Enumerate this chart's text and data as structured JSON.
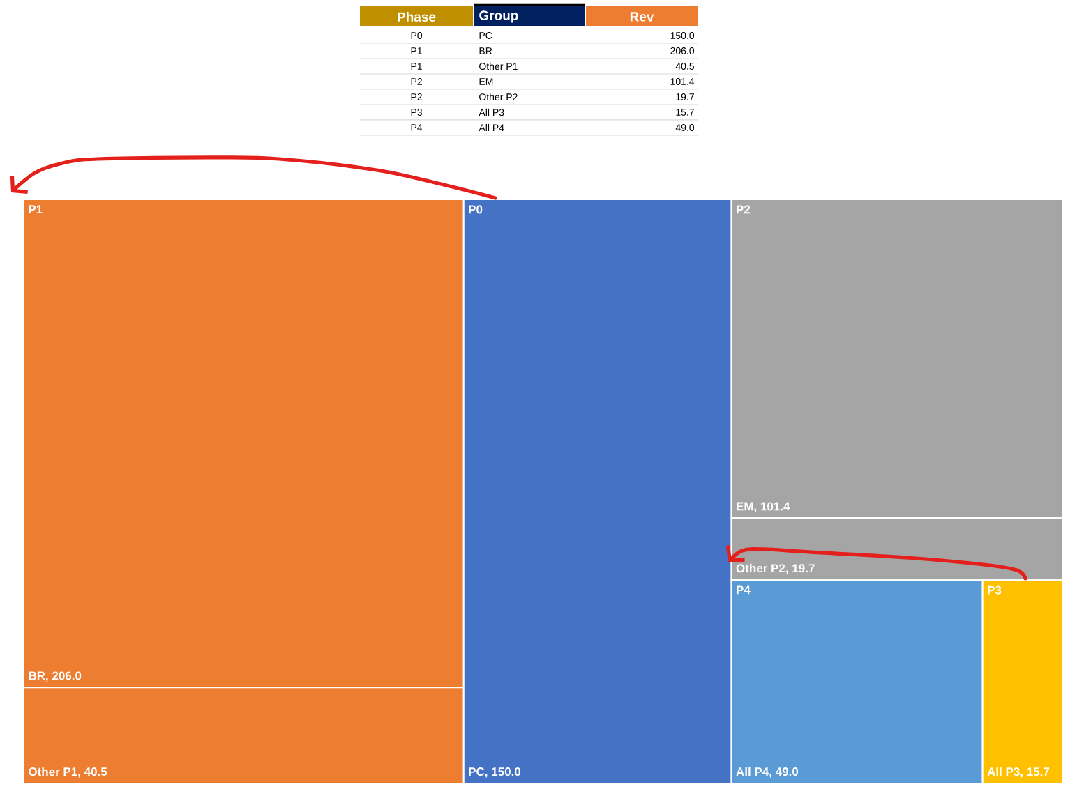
{
  "chart_data": {
    "type": "other",
    "annotations": [
      "Phase",
      "Group",
      "Rev",
      "P0",
      "PC",
      "150.0",
      "P1",
      "BR",
      "206.0",
      "P1",
      "Other P1",
      "40.5",
      "P2",
      "EM",
      "101.4",
      "P2",
      "Other P2",
      "19.7",
      "P3",
      "All P3",
      "15.7",
      "P4",
      "All P4",
      "49.0"
    ],
    "categories": [
      "PC",
      "BR",
      "Other P1",
      "EM",
      "Other P2",
      "All P3",
      "All P4"
    ],
    "series": [
      {
        "name": "P1",
        "color": "#ed7d31",
        "values": [
          null,
          206.0,
          40.5,
          null,
          null,
          null,
          null
        ],
        "value_labels": [
          null,
          ", 206.0",
          ", 40.5",
          null,
          null,
          null,
          null
        ]
      },
      {
        "name": "P0",
        "color": "#4472c4",
        "values": [
          150.0,
          null,
          null,
          null,
          null,
          null,
          null
        ],
        "value_labels": [
          ", 150.0",
          null,
          null,
          null,
          null,
          null,
          null
        ]
      },
      {
        "name": "P2",
        "color": "#a5a5a5",
        "values": [
          null,
          null,
          null,
          101.4,
          19.7,
          null,
          null
        ],
        "value_labels": [
          null,
          null,
          null,
          ", 101.4",
          ", 19.7",
          null,
          null
        ]
      },
      {
        "name": "P4",
        "color": "#5b9bd5",
        "values": [
          null,
          null,
          null,
          null,
          null,
          null,
          49.0
        ],
        "value_labels": [
          null,
          null,
          null,
          null,
          null,
          null,
          ", 49.0"
        ]
      },
      {
        "name": "P3",
        "color": "#ffc000",
        "values": [
          null,
          null,
          null,
          null,
          null,
          15.7,
          null
        ],
        "value_labels": [
          null,
          null,
          null,
          null,
          null,
          ", 15.7",
          null
        ]
      }
    ]
  }
}
